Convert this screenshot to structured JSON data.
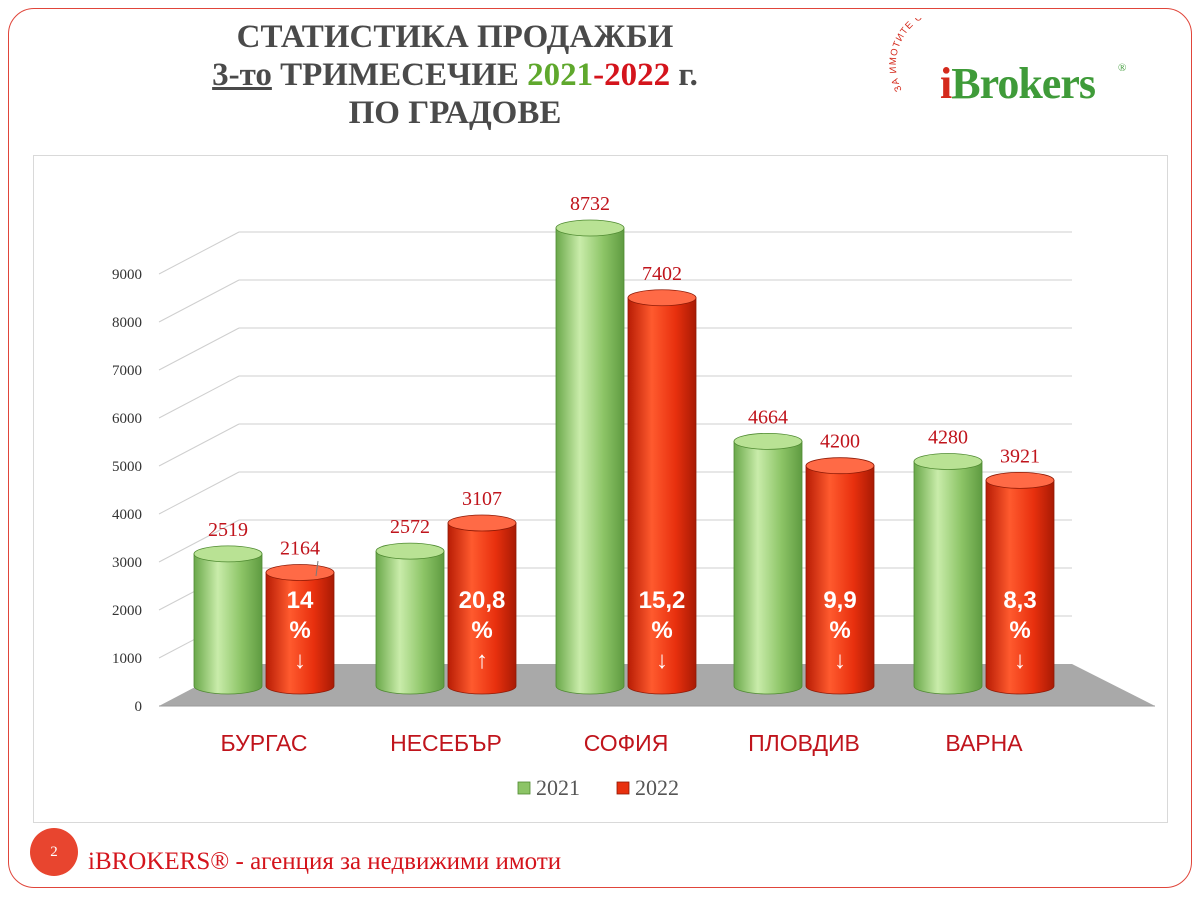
{
  "title": {
    "line1": "СТАТИСТИКА ПРОДАЖБИ",
    "line2_prefix": "3-то",
    "line2_mid": "ТРИМЕСЕЧИЕ",
    "line2_year1": "2021",
    "line2_dash": "-",
    "line2_year2": "2022",
    "line2_suffix": "г.",
    "line3": "ПО ГРАДОВЕ"
  },
  "logo": {
    "arc_text": "ЗА ИМОТИТЕ ОТ ОПИТ",
    "i": "i",
    "rest": "Brokers",
    "reg": "®"
  },
  "footer": {
    "page_number": "2",
    "text": "iBROKERS® - агенция за недвижими имоти"
  },
  "colors": {
    "green": "#8cc466",
    "red": "#e8300e",
    "label_red": "#c0141c",
    "floor": "#a9a9a9"
  },
  "chart_data": {
    "type": "bar",
    "categories": [
      "БУРГАС",
      "НЕСЕБЪР",
      "СОФИЯ",
      "ПЛОВДИВ",
      "ВАРНА"
    ],
    "series": [
      {
        "name": "2021",
        "values": [
          2519,
          2572,
          8732,
          4664,
          4280
        ]
      },
      {
        "name": "2022",
        "values": [
          2164,
          3107,
          7402,
          4200,
          3921
        ]
      }
    ],
    "change_labels": [
      {
        "value": "14",
        "unit": "%",
        "arrow": "↓"
      },
      {
        "value": "20,8",
        "unit": "%",
        "arrow": "↑"
      },
      {
        "value": "15,2",
        "unit": "%",
        "arrow": "↓"
      },
      {
        "value": "9,9",
        "unit": "%",
        "arrow": "↓"
      },
      {
        "value": "8,3",
        "unit": "%",
        "arrow": "↓"
      }
    ],
    "yticks": [
      0,
      1000,
      2000,
      3000,
      4000,
      5000,
      6000,
      7000,
      8000,
      9000
    ],
    "ylim": [
      0,
      9000
    ],
    "grid": true,
    "legend": "bottom"
  }
}
